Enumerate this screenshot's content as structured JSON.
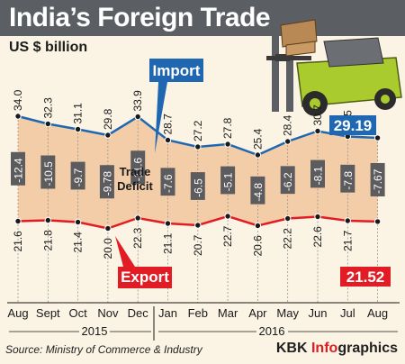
{
  "header": {
    "title": "India’s Foreign Trade",
    "unit": "US $ billion"
  },
  "footer": {
    "source": "Source: Ministry of Commerce & Industry",
    "credit_a": "KBK ",
    "credit_b": "Info",
    "credit_c": "graphics"
  },
  "colors": {
    "import": "#1f68b1",
    "export": "#e21c24",
    "band": "#f2c9a1",
    "title_bg": "#5b5e63",
    "deficit_box": "#5c5b5e"
  },
  "chart_data": {
    "type": "line",
    "title": "India’s Foreign Trade",
    "ylabel": "US $ billion",
    "categories": [
      "Aug",
      "Sept",
      "Oct",
      "Nov",
      "Dec",
      "Jan",
      "Feb",
      "Mar",
      "Apr",
      "May",
      "Jun",
      "Jul",
      "Aug"
    ],
    "years": [
      "2015",
      "2016"
    ],
    "series": [
      {
        "name": "Import",
        "values": [
          34.0,
          32.3,
          31.1,
          29.8,
          33.9,
          28.7,
          27.2,
          27.8,
          25.4,
          28.4,
          30.7,
          29.5,
          29.19
        ],
        "labels": [
          "34.0",
          "32.3",
          "31.1",
          "29.8",
          "33.9",
          "28.7",
          "27.2",
          "27.8",
          "25.4",
          "28.4",
          "30.7",
          "29.5",
          "29.19"
        ]
      },
      {
        "name": "Export",
        "values": [
          21.6,
          21.8,
          21.4,
          20.0,
          22.3,
          21.1,
          20.7,
          22.7,
          20.6,
          22.2,
          22.6,
          21.7,
          21.52
        ],
        "labels": [
          "21.6",
          "21.8",
          "21.4",
          "20.0",
          "22.3",
          "21.1",
          "20.7",
          "22.7",
          "20.6",
          "22.2",
          "22.6",
          "21.7",
          "21.52"
        ]
      }
    ],
    "deficit": {
      "name": "Trade Deficit",
      "values": [
        -12.4,
        -10.5,
        -9.7,
        -9.78,
        -11.6,
        -7.6,
        -6.5,
        -5.1,
        -4.8,
        -6.2,
        -8.1,
        -7.8,
        -7.67
      ],
      "labels": [
        "-12.4",
        "-10.5",
        "-9.7",
        "-9.78",
        "-11.6",
        "-7.6",
        "-6.5",
        "-5.1",
        "-4.8",
        "-6.2",
        "-8.1",
        "-7.8",
        "-7.67"
      ]
    },
    "grid": true,
    "legend": "inline"
  }
}
